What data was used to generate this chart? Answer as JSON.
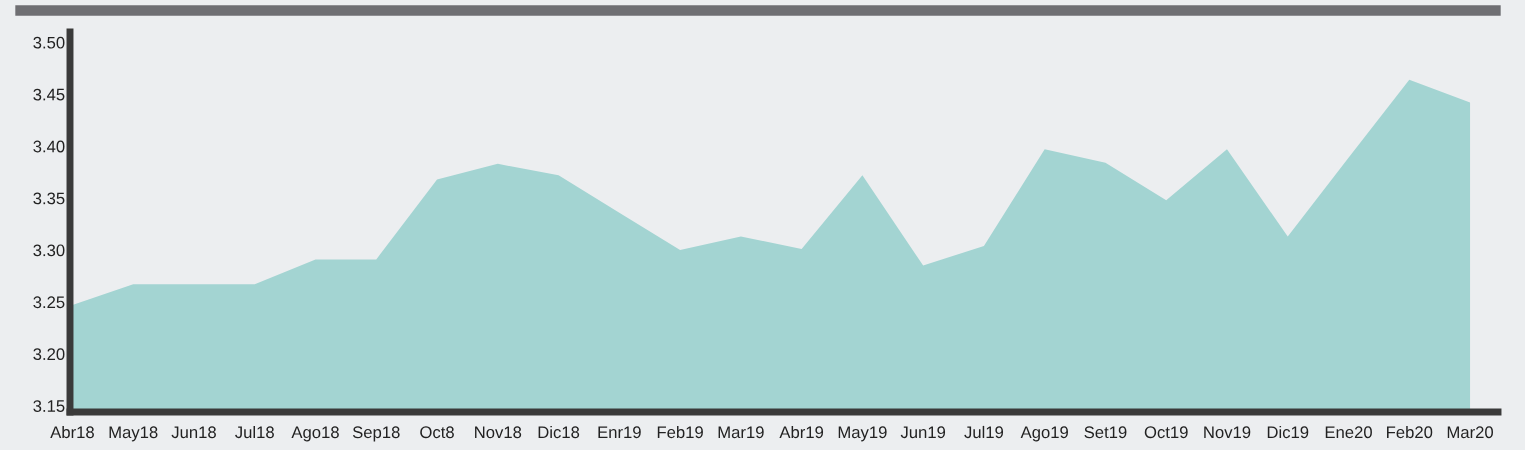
{
  "chart_data": {
    "type": "area",
    "categories": [
      "Abr18",
      "May18",
      "Jun18",
      "Jul18",
      "Ago18",
      "Sep18",
      "Oct8",
      "Nov18",
      "Dic18",
      "Enr19",
      "Feb19",
      "Mar19",
      "Abr19",
      "May19",
      "Jun19",
      "Jul19",
      "Ago19",
      "Set19",
      "Oct19",
      "Nov19",
      "Dic19",
      "Ene20",
      "Feb20",
      "Mar20"
    ],
    "series": [
      {
        "color": "#a3d4d2",
        "values": [
          3.247,
          3.267,
          3.267,
          3.267,
          3.291,
          3.291,
          3.368,
          3.383,
          3.372,
          3.336,
          3.3,
          3.313,
          3.301,
          3.372,
          3.285,
          3.304,
          3.397,
          3.384,
          3.348,
          3.397,
          3.313,
          3.389,
          3.464,
          3.442
        ]
      }
    ],
    "ylim": [
      3.144,
      3.51
    ],
    "yticks": [
      {
        "value": 3.15,
        "label": "3.15"
      },
      {
        "value": 3.2,
        "label": "3.20"
      },
      {
        "value": 3.25,
        "label": "3.25"
      },
      {
        "value": 3.3,
        "label": "3.30"
      },
      {
        "value": 3.35,
        "label": "3.35"
      },
      {
        "value": 3.4,
        "label": "3.40"
      },
      {
        "value": 3.45,
        "label": "3.45"
      },
      {
        "value": 3.5,
        "label": "3.50"
      }
    ],
    "grid": false,
    "legend": false
  }
}
